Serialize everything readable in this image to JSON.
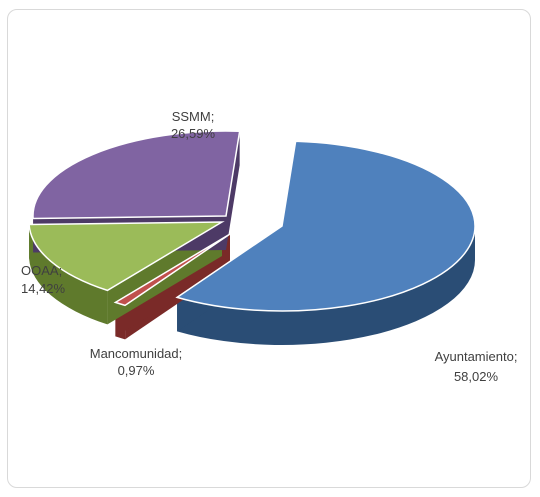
{
  "chart_data": {
    "type": "pie",
    "title": "",
    "exploded": true,
    "three_d": true,
    "label_separator": ";",
    "slices": [
      {
        "name": "Ayuntamiento",
        "value": 58.02,
        "value_label": "58,02%",
        "color": "#4f81bd",
        "side_color": "#2a4d75"
      },
      {
        "name": "Mancomunidad",
        "value": 0.97,
        "value_label": "0,97%",
        "color": "#c0504d",
        "side_color": "#7a2a28"
      },
      {
        "name": "OOAA",
        "value": 14.42,
        "value_label": "14,42%",
        "color": "#9bbb59",
        "side_color": "#5f7a2c"
      },
      {
        "name": "SSMM",
        "value": 26.59,
        "value_label": "26,59%",
        "color": "#8064a2",
        "side_color": "#4d3a66"
      }
    ]
  }
}
